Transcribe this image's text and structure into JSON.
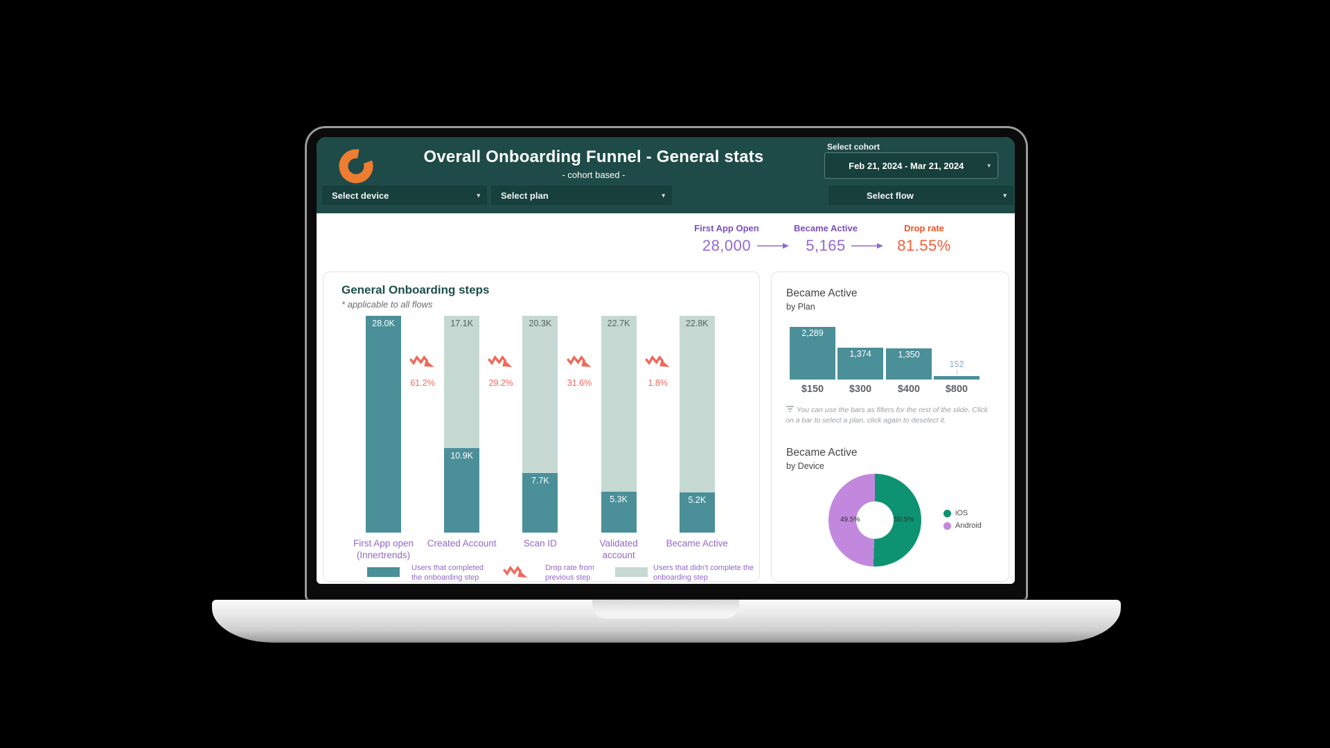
{
  "header": {
    "title": "Overall Onboarding Funnel  - General stats",
    "subtitle": "- cohort based -",
    "cohort_label": "Select cohort",
    "cohort_value": "Feb 21, 2024 - Mar 21, 2024"
  },
  "filters": {
    "device": "Select device",
    "plan": "Select plan",
    "flow": "Select flow"
  },
  "stats": {
    "first_app_open_label": "First App Open",
    "first_app_open_value": "28,000",
    "became_active_label": "Became Active",
    "became_active_value": "5,165",
    "drop_rate_label": "Drop rate",
    "drop_rate_value": "81.55%"
  },
  "funnel_card": {
    "title": "General Onboarding steps",
    "subtitle": "* applicable to all flows",
    "legend": [
      {
        "label": "Users that completed the onboarding step"
      },
      {
        "label": "Drop rate from previous step"
      },
      {
        "label": "Users that didn't complete the onboarding step"
      }
    ]
  },
  "plan_card": {
    "title": "Became Active",
    "subtitle": "by Plan",
    "note": "You can use the bars as filters for the rest of the slide. Click on a bar to select a plan, click again to deselect it."
  },
  "device_card": {
    "title": "Became Active",
    "subtitle": "by Device"
  },
  "chart_data": [
    {
      "id": "onboarding_funnel",
      "type": "bar",
      "stacked": true,
      "title": "General Onboarding steps",
      "total_cohort": 28000,
      "bars": [
        {
          "category": "First App open (Innertrends)",
          "completed": {
            "value": 28000,
            "label": "28.0K"
          },
          "not_completed": {
            "value": 0,
            "label": ""
          }
        },
        {
          "category": "Created Account",
          "completed": {
            "value": 10900,
            "label": "10.9K"
          },
          "not_completed": {
            "value": 17100,
            "label": "17.1K"
          }
        },
        {
          "category": "Scan ID",
          "completed": {
            "value": 7700,
            "label": "7.7K"
          },
          "not_completed": {
            "value": 20300,
            "label": "20.3K"
          }
        },
        {
          "category": "Validated account",
          "completed": {
            "value": 5300,
            "label": "5.3K"
          },
          "not_completed": {
            "value": 22700,
            "label": "22.7K"
          }
        },
        {
          "category": "Became Active",
          "completed": {
            "value": 5200,
            "label": "5.2K"
          },
          "not_completed": {
            "value": 22800,
            "label": "22.8K"
          }
        }
      ],
      "drop_rates": [
        "61.2%",
        "29.2%",
        "31.6%",
        "1.8%"
      ]
    },
    {
      "id": "became_active_by_plan",
      "type": "bar",
      "title": "Became Active by Plan",
      "categories": [
        "$150",
        "$300",
        "$400",
        "$800"
      ],
      "values": [
        2289,
        1374,
        1350,
        152
      ],
      "labels": [
        "2,289",
        "1,374",
        "1,350",
        "152"
      ]
    },
    {
      "id": "became_active_by_device",
      "type": "pie",
      "title": "Became Active by Device",
      "slices": [
        {
          "label": "iOS",
          "value": 50.5,
          "display": "50.5%",
          "color": "#0d9372"
        },
        {
          "label": "Android",
          "value": 49.5,
          "display": "49.5%",
          "color": "#c288de"
        }
      ]
    }
  ],
  "colors": {
    "header_teal": "#1e4b48",
    "dropdown_teal": "#173f3c",
    "bar_teal": "#4b8f99",
    "bar_sage": "#c5d9d2",
    "drop_red": "#ee6a5c",
    "purple_label": "#7a4fbe",
    "purple_value": "#9468cb",
    "drop_rate_orange": "#f4511e",
    "ios_green": "#0d9372",
    "android_purple": "#c288de",
    "logo_orange": "#ee7d31",
    "plan_small_label": "#85aec9"
  }
}
